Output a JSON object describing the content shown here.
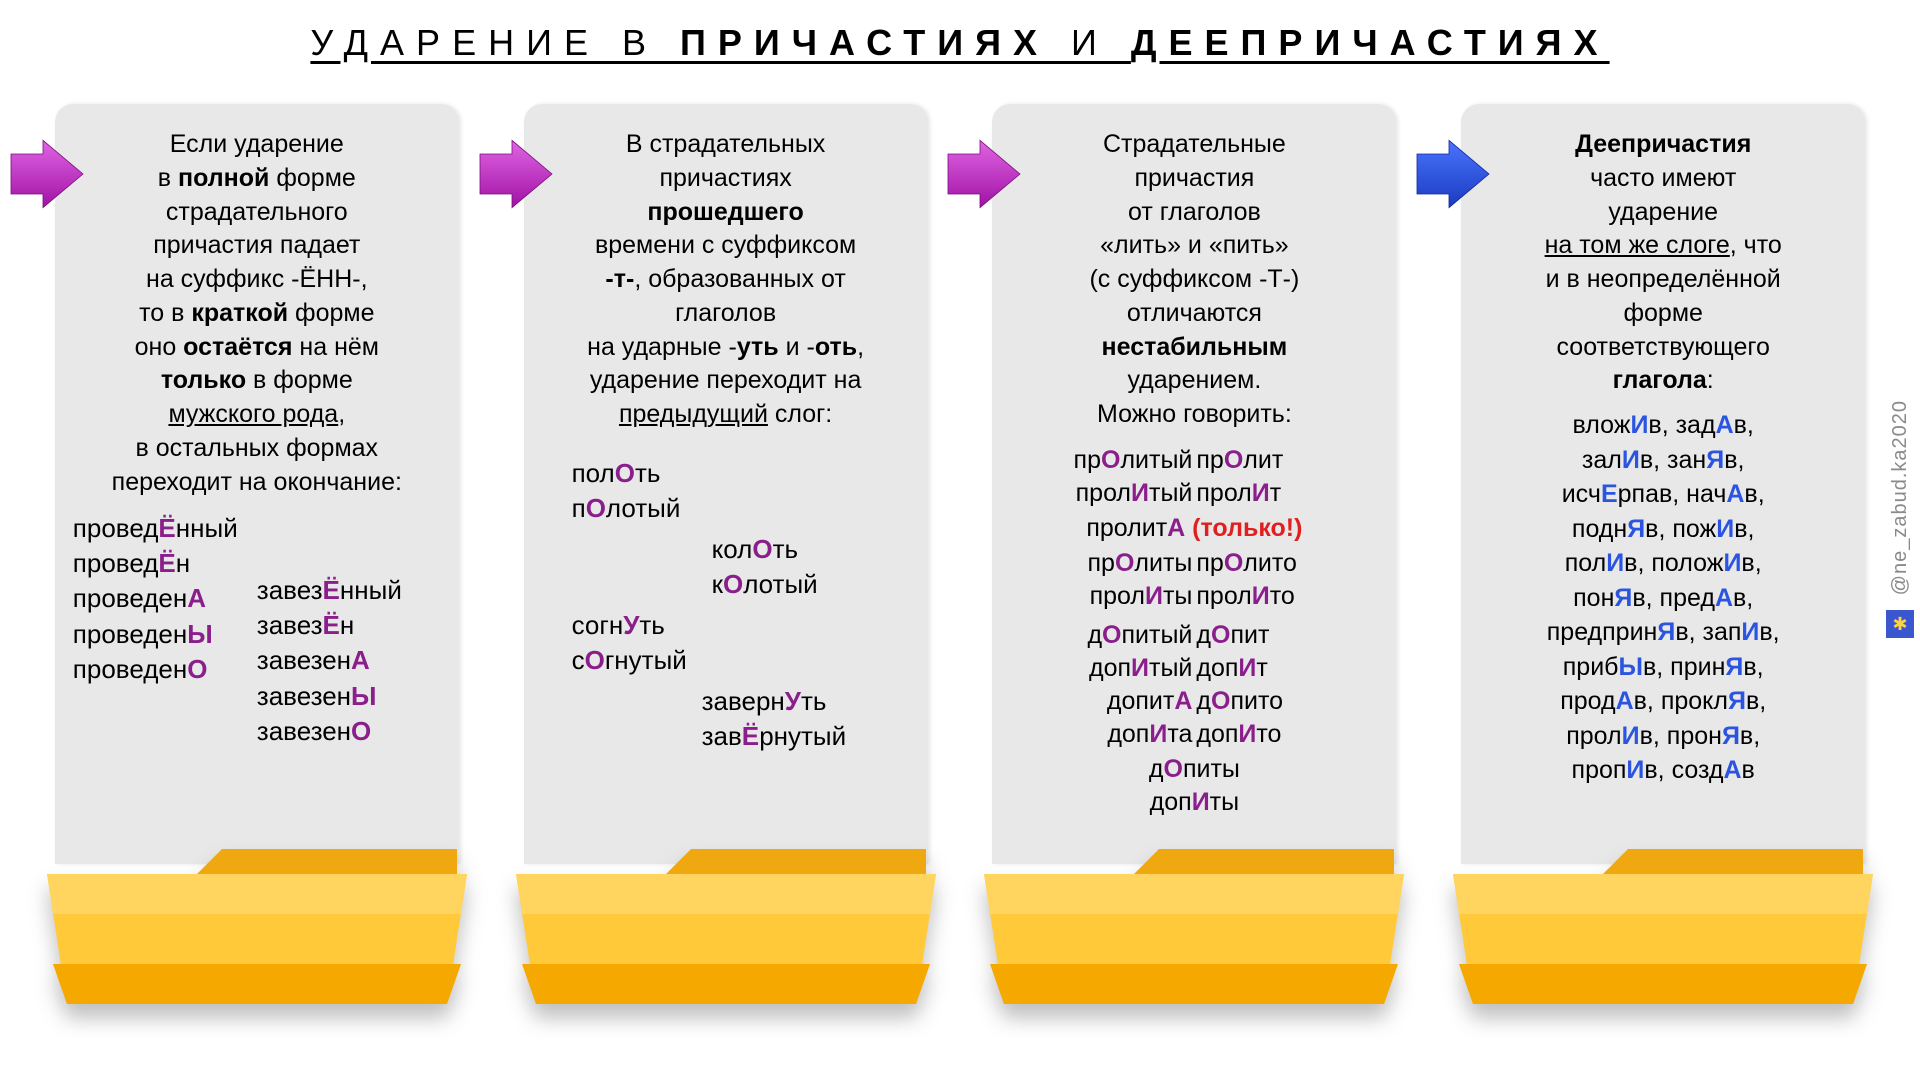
{
  "title_pre": "УДАРЕНИЕ В ",
  "title_b1": "ПРИЧАСТИЯХ",
  "title_mid": " И ",
  "title_b2": "ДЕЕПРИЧАСТИЯХ",
  "watermark": "@ne_zabud.ka2020",
  "colors": {
    "arrow_magenta": "#d21fd6",
    "arrow_blue": "#2b55e0",
    "folder_top": "#ffbb1f",
    "folder_mid": "#ffc93a",
    "folder_bot": "#ffb000",
    "stress_purple": "#8a1f8c",
    "stress_blue": "#2b55e0",
    "warn_red": "#e02020",
    "card_bg": "#e8e8e8"
  },
  "cards": [
    {
      "arrow_color": "#d21fd6",
      "rule_html": "Если ударение<br>в <b>полной</b> форме<br>страдательного<br>причастия падает<br>на суффикс -ЁНН-,<br>то в <b>краткой</b> форме<br>оно <b>остаётся</b> на нём<br><b>только</b> в форме<br><u>мужского рода</u>,<br>в остальных формах<br>переходит на окончание:",
      "left": [
        {
          "pre": "провед",
          "s": "Ё",
          "post": "нный"
        },
        {
          "pre": "провед",
          "s": "Ё",
          "post": "н"
        },
        {
          "pre": "проведен",
          "s": "А",
          "post": ""
        },
        {
          "pre": "проведен",
          "s": "Ы",
          "post": ""
        },
        {
          "pre": "проведен",
          "s": "О",
          "post": ""
        }
      ],
      "right": [
        {
          "pre": "завез",
          "s": "Ё",
          "post": "нный"
        },
        {
          "pre": "завез",
          "s": "Ё",
          "post": "н"
        },
        {
          "pre": "завезен",
          "s": "А",
          "post": ""
        },
        {
          "pre": "завезен",
          "s": "Ы",
          "post": ""
        },
        {
          "pre": "завезен",
          "s": "О",
          "post": ""
        }
      ]
    },
    {
      "arrow_color": "#d21fd6",
      "rule_html": "В страдательных<br>причастиях<br><b>прошедшего</b><br>времени с суффиксом<br><b>-т-</b>, образованных от<br>глаголов<br>на ударные -<b>уть</b> и -<b>оть</b>,<br>ударение переходит на<br><u>предыдущий</u> слог:",
      "pairs": [
        [
          {
            "pre": "пол",
            "s": "О",
            "post": "ть"
          },
          {
            "pre": "п",
            "s": "О",
            "post": "лотый"
          }
        ],
        [
          {
            "pre": "кол",
            "s": "О",
            "post": "ть"
          },
          {
            "pre": "к",
            "s": "О",
            "post": "лотый"
          }
        ],
        [
          {
            "pre": "согн",
            "s": "У",
            "post": "ть"
          },
          {
            "pre": "с",
            "s": "О",
            "post": "гнутый"
          }
        ],
        [
          {
            "pre": "заверн",
            "s": "У",
            "post": "ть"
          },
          {
            "pre": "зав",
            "s": "Ё",
            "post": "рнутый"
          }
        ]
      ]
    },
    {
      "arrow_color": "#d21fd6",
      "rule_html": "Страдательные<br>причастия<br>от глаголов<br>«лить» и «пить»<br>(с суффиксом -Т-)<br>отличаются<br><b>нестабильным</b><br>ударением.<br>Можно говорить:",
      "colA": [
        {
          "pre": "пр",
          "s": "О",
          "post": "литый"
        },
        {
          "pre": "прол",
          "s": "И",
          "post": "тый"
        }
      ],
      "colB": [
        {
          "pre": "пр",
          "s": "О",
          "post": "лит"
        },
        {
          "pre": "прол",
          "s": "И",
          "post": "т"
        }
      ],
      "center1": {
        "pre": "пролит",
        "s": "А",
        "post": "",
        "note": " (только!)"
      },
      "colC": [
        {
          "pre": "пр",
          "s": "О",
          "post": "литы"
        },
        {
          "pre": "прол",
          "s": "И",
          "post": "ты"
        }
      ],
      "colD": [
        {
          "pre": "пр",
          "s": "О",
          "post": "лито"
        },
        {
          "pre": "прол",
          "s": "И",
          "post": "то"
        }
      ],
      "colE": [
        {
          "pre": "д",
          "s": "О",
          "post": "питый"
        },
        {
          "pre": "доп",
          "s": "И",
          "post": "тый"
        },
        {
          "pre": "допит",
          "s": "А",
          "post": ""
        },
        {
          "pre": "доп",
          "s": "И",
          "post": "та"
        }
      ],
      "colF": [
        {
          "pre": "д",
          "s": "О",
          "post": "пит"
        },
        {
          "pre": "доп",
          "s": "И",
          "post": "т"
        },
        {
          "pre": "д",
          "s": "О",
          "post": "пито"
        },
        {
          "pre": "доп",
          "s": "И",
          "post": "то"
        }
      ],
      "bottom": [
        {
          "pre": "д",
          "s": "О",
          "post": "питы"
        },
        {
          "pre": "доп",
          "s": "И",
          "post": "ты"
        }
      ]
    },
    {
      "arrow_color": "#2b55e0",
      "rule_html": "<b>Деепричастия</b><br>часто имеют<br>ударение<br><u>на том же слоге</u>, что<br>и в неопределённой<br>форме<br>соответствующего<br><b>глагола</b>:",
      "lines": [
        [
          {
            "pre": "влож",
            "s": "И",
            "post": "в, "
          },
          {
            "pre": "зад",
            "s": "А",
            "post": "в,"
          }
        ],
        [
          {
            "pre": "зал",
            "s": "И",
            "post": "в, "
          },
          {
            "pre": "зан",
            "s": "Я",
            "post": "в,"
          }
        ],
        [
          {
            "pre": "исч",
            "s": "Е",
            "post": "рпав, "
          },
          {
            "pre": "нач",
            "s": "А",
            "post": "в,"
          }
        ],
        [
          {
            "pre": "подн",
            "s": "Я",
            "post": "в, "
          },
          {
            "pre": "пож",
            "s": "И",
            "post": "в,"
          }
        ],
        [
          {
            "pre": "пол",
            "s": "И",
            "post": "в, "
          },
          {
            "pre": "полож",
            "s": "И",
            "post": "в,"
          }
        ],
        [
          {
            "pre": "пон",
            "s": "Я",
            "post": "в, "
          },
          {
            "pre": "пред",
            "s": "А",
            "post": "в,"
          }
        ],
        [
          {
            "pre": "предприн",
            "s": "Я",
            "post": "в, "
          },
          {
            "pre": "зап",
            "s": "И",
            "post": "в,"
          }
        ],
        [
          {
            "pre": "приб",
            "s": "Ы",
            "post": "в, "
          },
          {
            "pre": "прин",
            "s": "Я",
            "post": "в,"
          }
        ],
        [
          {
            "pre": "прод",
            "s": "А",
            "post": "в, "
          },
          {
            "pre": "прокл",
            "s": "Я",
            "post": "в,"
          }
        ],
        [
          {
            "pre": "прол",
            "s": "И",
            "post": "в, "
          },
          {
            "pre": "прон",
            "s": "Я",
            "post": "в,"
          }
        ],
        [
          {
            "pre": "проп",
            "s": "И",
            "post": "в, "
          },
          {
            "pre": "созд",
            "s": "А",
            "post": "в"
          }
        ]
      ]
    }
  ]
}
